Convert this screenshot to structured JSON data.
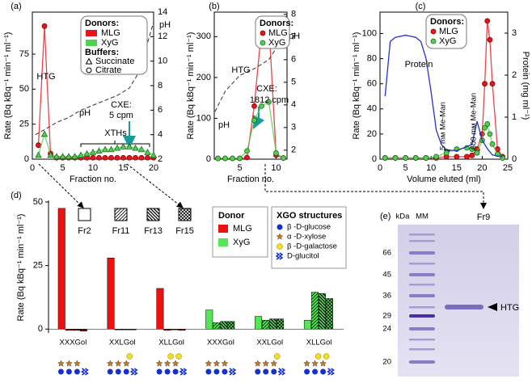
{
  "chart_data": [
    {
      "type": "line",
      "label": "(a)",
      "xlabel": "Fraction no.",
      "ylabel": "Rate (Bq kBq⁻¹ min⁻¹ ml⁻¹)",
      "y2label": "pH",
      "xlim": [
        0,
        20
      ],
      "xticks": [
        0,
        5,
        10,
        15,
        20
      ],
      "ylim": [
        0,
        105
      ],
      "yticks": [
        0,
        25,
        50,
        75
      ],
      "y2lim": [
        2,
        14
      ],
      "y2ticks": [
        2,
        4,
        6,
        8,
        10,
        12,
        14
      ],
      "legend_swatch": "box",
      "series": [
        {
          "name": "MLG",
          "color": "#e8141b",
          "marker": "circle",
          "x": [
            1,
            2,
            3,
            4,
            5,
            6,
            7,
            8,
            9,
            10,
            11,
            12,
            13,
            14,
            15,
            16,
            17,
            18,
            19,
            20
          ],
          "values": [
            10,
            95,
            4,
            1,
            1,
            1,
            1,
            1,
            1,
            1,
            1,
            1,
            1,
            1,
            1,
            1,
            1,
            1,
            1,
            1
          ]
        },
        {
          "name": "XyG",
          "color": "#4fd04f",
          "marker": "triangle",
          "x": [
            1,
            2,
            3,
            4,
            5,
            6,
            7,
            8,
            9,
            10,
            11,
            12,
            13,
            14,
            15,
            16,
            17,
            18,
            19,
            20
          ],
          "values": [
            3,
            18,
            3,
            2,
            2,
            2,
            2,
            3,
            4,
            5,
            6,
            7,
            7,
            8,
            9,
            9,
            8,
            7,
            5,
            3
          ]
        },
        {
          "name": "pH",
          "color": "#333333",
          "dash": true,
          "axis": "y2",
          "x": [
            0.5,
            2,
            4,
            6,
            8,
            10,
            12,
            14,
            16,
            17,
            18,
            19,
            20
          ],
          "values": [
            4.0,
            4.4,
            5.0,
            5.4,
            6.0,
            6.4,
            6.8,
            7.2,
            7.8,
            8.6,
            9.5,
            11.5,
            13.2
          ]
        }
      ],
      "legend": {
        "title": "Donors:",
        "buffers_title": "Buffers:",
        "buffers": [
          "Succinate",
          "Citrate"
        ]
      },
      "annotations": [
        "HTG",
        "XTHs",
        "CXE:",
        "5 cpm"
      ]
    },
    {
      "type": "line",
      "label": "(b)",
      "xlabel": "Fraction no.",
      "ylabel": "Rate (Bq kBq⁻¹ min⁻¹ ml⁻¹)",
      "y2label": "pH",
      "xlim": [
        1.5,
        11.5
      ],
      "xticks": [
        5,
        10
      ],
      "ylim": [
        0,
        360
      ],
      "yticks": [
        0,
        100,
        200,
        300
      ],
      "y2lim": [
        1.6,
        8.1
      ],
      "y2ticks": [
        2,
        3,
        4,
        5,
        6,
        7,
        8
      ],
      "legend_swatch": "circle",
      "series": [
        {
          "name": "MLG",
          "color": "#e8141b",
          "marker": "circle",
          "x": [
            2,
            3,
            4,
            5,
            6,
            7,
            8,
            9,
            10,
            11
          ],
          "values": [
            2,
            2,
            2,
            2,
            4,
            130,
            320,
            335,
            10,
            3
          ]
        },
        {
          "name": "XyG",
          "color": "#4fd04f",
          "marker": "circle",
          "x": [
            2,
            3,
            4,
            5,
            6,
            7,
            8,
            9,
            10,
            11
          ],
          "values": [
            2,
            2,
            2,
            2,
            20,
            95,
            130,
            140,
            15,
            3
          ]
        },
        {
          "name": "pH",
          "color": "#333333",
          "dash": true,
          "axis": "y2",
          "x": [
            1.6,
            3,
            5,
            7,
            8,
            9,
            10,
            11.5
          ],
          "values": [
            3.7,
            4.6,
            5.3,
            5.6,
            5.8,
            6.0,
            6.5,
            8.0
          ]
        }
      ],
      "legend": {
        "title": "Donors:"
      },
      "annotations": [
        "HTG",
        "CXE:",
        "1812 cpm"
      ]
    },
    {
      "type": "line",
      "label": "(c)",
      "xlabel": "Volume eluted (ml)",
      "ylabel": "Rate (Bq kBq⁻¹ min⁻¹ ml⁻¹)",
      "y2label": "Protein (mg ml⁻¹)",
      "xlim": [
        0,
        25
      ],
      "xticks": [
        0,
        5,
        10,
        15,
        20,
        25
      ],
      "ylim": [
        0,
        117
      ],
      "yticks": [
        0,
        20,
        40,
        60,
        80,
        100
      ],
      "y2lim": [
        0,
        3.5
      ],
      "y2ticks": [
        0,
        1,
        2,
        3
      ],
      "legend_swatch": "circle",
      "series": [
        {
          "name": "MLG",
          "color": "#e8141b",
          "marker": "circle",
          "x": [
            1,
            3,
            5,
            7,
            9,
            11,
            13,
            15,
            17,
            18,
            19,
            20,
            20.5,
            21,
            21.5,
            22,
            23,
            24
          ],
          "values": [
            1,
            1,
            1,
            1,
            1,
            1,
            2,
            2,
            2,
            3,
            8,
            20,
            60,
            110,
            95,
            60,
            8,
            2
          ]
        },
        {
          "name": "XyG",
          "color": "#4fd04f",
          "marker": "circle",
          "x": [
            1,
            3,
            5,
            7,
            9,
            11,
            13,
            15,
            17,
            18,
            19,
            20,
            20.5,
            21,
            21.5,
            22,
            23,
            24
          ],
          "values": [
            1,
            1,
            1,
            1,
            1,
            2,
            5,
            8,
            9,
            8,
            5,
            15,
            25,
            28,
            20,
            12,
            4,
            1
          ]
        },
        {
          "name": "Protein",
          "color": "#2233cc",
          "axis": "y2",
          "x": [
            1,
            2,
            3,
            5,
            7,
            8,
            9,
            10,
            11,
            12,
            13,
            15,
            17,
            18,
            19,
            20,
            21,
            22,
            24
          ],
          "values": [
            1.5,
            2.8,
            2.9,
            2.95,
            2.9,
            2.8,
            2.4,
            1.6,
            0.7,
            0.35,
            0.22,
            0.2,
            0.3,
            0.35,
            0.9,
            0.45,
            0.25,
            0.1,
            0.05
          ]
        }
      ],
      "legend": {
        "title": "Donors:"
      },
      "annotations": [
        "5 mᴍ Me-Man",
        "600 mᴍ Me-Man"
      ]
    },
    {
      "type": "bar",
      "label": "(d)",
      "ylabel": "Rate (Bq kBq⁻¹ min⁻¹ ml⁻¹)",
      "categories": [
        "XXXGol",
        "XXLGol",
        "XLLGol",
        "XXXGol",
        "XXLGol",
        "XLLGol"
      ],
      "donor_of_category": [
        0,
        0,
        0,
        1,
        1,
        1
      ],
      "donors": {
        "title": "Donor",
        "items": [
          {
            "name": "MLG",
            "color": "#f01010"
          },
          {
            "name": "XyG",
            "color": "#55e655"
          }
        ]
      },
      "ylim": [
        -1.5,
        50
      ],
      "yticks": [
        0,
        25,
        50
      ],
      "series": [
        {
          "name": "Fr2",
          "pattern": "solid",
          "values": [
            47.5,
            28,
            16,
            7.5,
            5,
            3.5
          ]
        },
        {
          "name": "Fr11",
          "pattern": "hatch",
          "values": [
            -0.5,
            -0.3,
            -0.5,
            2.5,
            3.5,
            14.5
          ]
        },
        {
          "name": "Fr13",
          "pattern": "backhatch",
          "values": [
            -0.5,
            -0.3,
            -0.3,
            3,
            4,
            14
          ]
        },
        {
          "name": "Fr15",
          "pattern": "crosshatch",
          "values": [
            -0.8,
            -0.3,
            -0.5,
            3,
            4,
            12
          ]
        }
      ],
      "structures": {
        "title": "XGO structures",
        "items": [
          "β -D-glucose",
          "α -D-xylose",
          "β -D-galactose",
          "D-glucitol"
        ]
      }
    }
  ],
  "gel": {
    "label": "(e)",
    "unit": "kDa",
    "lanes": [
      "MM",
      "Fr9"
    ],
    "markers": [
      "66",
      "45",
      "36",
      "29",
      "24",
      "20"
    ],
    "band": "HTG"
  }
}
